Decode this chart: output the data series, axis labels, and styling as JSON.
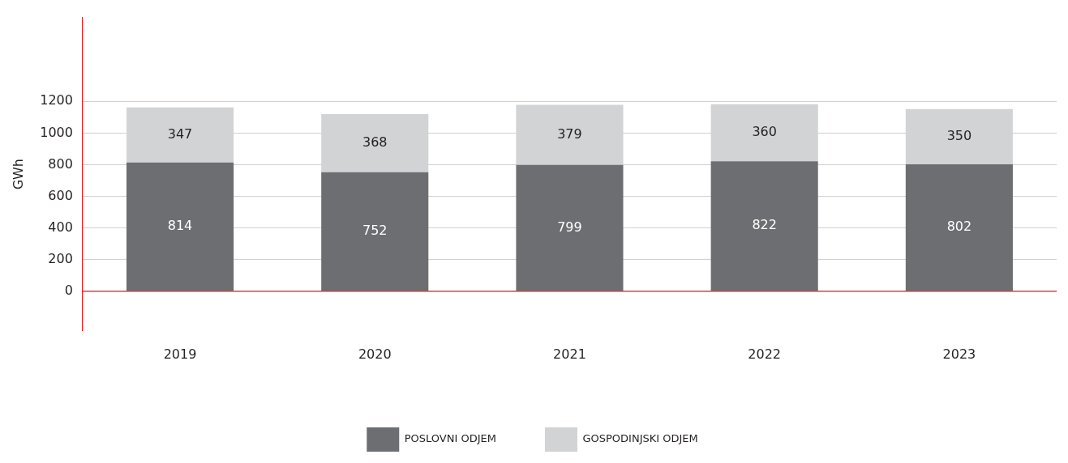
{
  "chart_data": {
    "type": "bar",
    "stacked": true,
    "ylabel": "GWh",
    "categories": [
      "2019",
      "2020",
      "2021",
      "2022",
      "2023"
    ],
    "series": [
      {
        "name": "POSLOVNI ODJEM",
        "color": "#6d6e71",
        "values": [
          814,
          752,
          799,
          822,
          802
        ]
      },
      {
        "name": "GOSPODINJSKI ODJEM",
        "color": "#d1d3d4",
        "values": [
          347,
          368,
          379,
          360,
          350
        ]
      }
    ],
    "ylim": [
      -250,
      1730
    ],
    "yticks": [
      0,
      200,
      400,
      600,
      800,
      1000,
      1200
    ],
    "grid": "y",
    "legend": "bottom",
    "data_labels": true,
    "ref_lines": [
      {
        "axis": "y",
        "value": 0,
        "color": "#e31e24"
      }
    ]
  }
}
